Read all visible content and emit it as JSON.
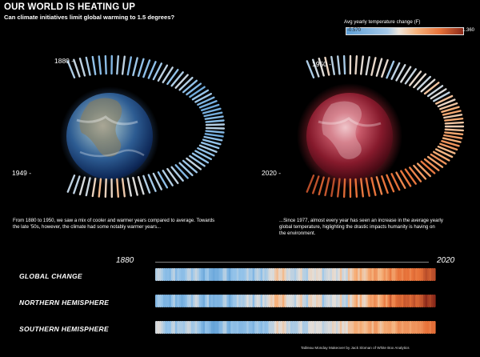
{
  "header": {
    "title": "OUR WORLD IS HEATING UP",
    "subtitle": "Can climate initiatives limit global warming to 1.5 degrees?"
  },
  "legend": {
    "title": "Avg yearly temperature change (F)",
    "min": "-0.570",
    "max": "1.360"
  },
  "left_panel": {
    "year_start": "1880 -",
    "year_end": "1949 -",
    "caption_line1": "From 1880 to 1950, we saw a mix of cooler and warmer years compared to average. Towards",
    "caption_line2": "the late '50s, however, the climate had some notably warmer years..."
  },
  "right_panel": {
    "year_start": "1950 -",
    "year_end": "2020 -",
    "caption_line1": "...Since 1977, almost every year has seen an increase in the average yearly",
    "caption_line2": "global temperature, higlighting the drastic impacts humanity is having on",
    "caption_line3": "the environment."
  },
  "strips": {
    "axis_start": "1880",
    "axis_end": "2020",
    "rows": [
      {
        "label": "GLOBAL CHANGE"
      },
      {
        "label": "NORTHERN HEMISPHERE"
      },
      {
        "label": "SOUTHERN HEMISPHERE"
      }
    ]
  },
  "credit": "Tableau Monday Makeover by Jack Sloman of White Box Analytics",
  "colors": {
    "cool": "#5e9fd6",
    "neutral": "#efe6dc",
    "warm": "#e8733a",
    "hot": "#8c2a1a"
  },
  "chart_data": [
    {
      "type": "heatmap",
      "name_hint": "radial-stripes-1880-1949",
      "x_start": 1880,
      "x_end": 1949,
      "values": [
        -0.17,
        -0.09,
        -0.11,
        -0.18,
        -0.28,
        -0.33,
        -0.31,
        -0.36,
        -0.18,
        -0.11,
        -0.35,
        -0.22,
        -0.27,
        -0.31,
        -0.3,
        -0.22,
        -0.11,
        -0.11,
        -0.27,
        -0.17,
        -0.08,
        -0.15,
        -0.28,
        -0.37,
        -0.47,
        -0.26,
        -0.22,
        -0.39,
        -0.43,
        -0.48,
        -0.43,
        -0.44,
        -0.36,
        -0.34,
        -0.15,
        -0.14,
        -0.36,
        -0.46,
        -0.3,
        -0.27,
        -0.27,
        -0.19,
        -0.28,
        -0.26,
        -0.27,
        -0.22,
        -0.1,
        -0.22,
        -0.2,
        -0.36,
        -0.16,
        -0.1,
        -0.16,
        -0.29,
        -0.13,
        -0.2,
        -0.15,
        -0.03,
        0.0,
        -0.02,
        0.13,
        0.19,
        0.07,
        0.09,
        0.2,
        0.09,
        -0.07,
        -0.03,
        -0.11,
        -0.11
      ],
      "color_range": [
        -0.57,
        1.36
      ]
    },
    {
      "type": "heatmap",
      "name_hint": "radial-stripes-1950-2020",
      "x_start": 1950,
      "x_end": 2020,
      "values": [
        -0.17,
        -0.07,
        0.01,
        0.08,
        -0.13,
        -0.14,
        -0.19,
        0.05,
        0.06,
        0.03,
        -0.03,
        0.06,
        0.03,
        0.05,
        -0.2,
        -0.11,
        -0.06,
        -0.02,
        -0.08,
        0.05,
        0.03,
        -0.08,
        0.01,
        0.16,
        -0.07,
        -0.01,
        -0.1,
        0.18,
        0.07,
        0.16,
        0.26,
        0.32,
        0.14,
        0.31,
        0.16,
        0.12,
        0.18,
        0.32,
        0.39,
        0.27,
        0.45,
        0.41,
        0.22,
        0.23,
        0.31,
        0.45,
        0.33,
        0.46,
        0.61,
        0.38,
        0.39,
        0.54,
        0.63,
        0.62,
        0.53,
        0.68,
        0.64,
        0.66,
        0.54,
        0.65,
        0.72,
        0.61,
        0.65,
        0.68,
        0.74,
        0.9,
        1.01,
        0.92,
        0.85,
        0.98,
        1.02
      ],
      "color_range": [
        -0.57,
        1.36
      ]
    },
    {
      "type": "heatmap",
      "name_hint": "global-change-strip",
      "x_start": 1880,
      "x_end": 2020,
      "values": [
        -0.17,
        -0.09,
        -0.11,
        -0.18,
        -0.28,
        -0.33,
        -0.31,
        -0.36,
        -0.18,
        -0.11,
        -0.35,
        -0.22,
        -0.27,
        -0.31,
        -0.3,
        -0.22,
        -0.11,
        -0.11,
        -0.27,
        -0.17,
        -0.08,
        -0.15,
        -0.28,
        -0.37,
        -0.47,
        -0.26,
        -0.22,
        -0.39,
        -0.43,
        -0.48,
        -0.43,
        -0.44,
        -0.36,
        -0.34,
        -0.15,
        -0.14,
        -0.36,
        -0.46,
        -0.3,
        -0.27,
        -0.27,
        -0.19,
        -0.28,
        -0.26,
        -0.27,
        -0.22,
        -0.1,
        -0.22,
        -0.2,
        -0.36,
        -0.16,
        -0.1,
        -0.16,
        -0.29,
        -0.13,
        -0.2,
        -0.15,
        -0.03,
        0.0,
        -0.02,
        0.13,
        0.19,
        0.07,
        0.09,
        0.2,
        0.09,
        -0.07,
        -0.03,
        -0.11,
        -0.11,
        -0.17,
        -0.07,
        0.01,
        0.08,
        -0.13,
        -0.14,
        -0.19,
        0.05,
        0.06,
        0.03,
        -0.03,
        0.06,
        0.03,
        0.05,
        -0.2,
        -0.11,
        -0.06,
        -0.02,
        -0.08,
        0.05,
        0.03,
        -0.08,
        0.01,
        0.16,
        -0.07,
        -0.01,
        -0.1,
        0.18,
        0.07,
        0.16,
        0.26,
        0.32,
        0.14,
        0.31,
        0.16,
        0.12,
        0.18,
        0.32,
        0.39,
        0.27,
        0.45,
        0.41,
        0.22,
        0.23,
        0.31,
        0.45,
        0.33,
        0.46,
        0.61,
        0.38,
        0.39,
        0.54,
        0.63,
        0.62,
        0.53,
        0.68,
        0.64,
        0.66,
        0.54,
        0.65,
        0.72,
        0.61,
        0.65,
        0.68,
        0.74,
        0.9,
        1.01,
        0.92,
        0.85,
        0.98,
        1.02
      ],
      "color_range": [
        -0.57,
        1.36
      ]
    },
    {
      "type": "heatmap",
      "name_hint": "northern-hemisphere-strip",
      "x_start": 1880,
      "x_end": 2020,
      "values": [
        -0.36,
        -0.21,
        -0.22,
        -0.28,
        -0.4,
        -0.39,
        -0.38,
        -0.47,
        -0.25,
        -0.15,
        -0.41,
        -0.3,
        -0.38,
        -0.46,
        -0.4,
        -0.33,
        -0.18,
        -0.15,
        -0.32,
        -0.15,
        -0.05,
        -0.1,
        -0.3,
        -0.36,
        -0.46,
        -0.25,
        -0.14,
        -0.43,
        -0.35,
        -0.42,
        -0.37,
        -0.39,
        -0.37,
        -0.34,
        -0.15,
        -0.13,
        -0.32,
        -0.47,
        -0.34,
        -0.24,
        -0.23,
        -0.1,
        -0.2,
        -0.16,
        -0.2,
        -0.13,
        0.0,
        -0.12,
        -0.07,
        -0.32,
        -0.09,
        -0.01,
        -0.05,
        -0.24,
        -0.03,
        -0.11,
        -0.04,
        0.06,
        0.13,
        0.08,
        0.25,
        0.26,
        0.15,
        0.14,
        0.28,
        0.12,
        -0.02,
        0.0,
        -0.02,
        -0.05,
        -0.16,
        0.02,
        0.07,
        0.16,
        -0.08,
        -0.1,
        -0.21,
        0.09,
        0.11,
        0.03,
        -0.01,
        0.11,
        0.07,
        0.1,
        -0.27,
        -0.14,
        -0.07,
        -0.03,
        -0.11,
        0.01,
        0.02,
        -0.08,
        -0.03,
        0.15,
        -0.14,
        -0.09,
        -0.2,
        0.18,
        -0.02,
        0.14,
        0.23,
        0.36,
        0.07,
        0.31,
        0.09,
        0.06,
        0.14,
        0.31,
        0.4,
        0.35,
        0.5,
        0.42,
        0.2,
        0.31,
        0.41,
        0.58,
        0.36,
        0.58,
        0.86,
        0.52,
        0.55,
        0.73,
        0.78,
        0.8,
        0.71,
        0.92,
        0.85,
        0.88,
        0.74,
        0.86,
        0.99,
        0.79,
        0.82,
        0.9,
        0.97,
        1.21,
        1.38,
        1.19,
        1.12,
        1.26,
        1.36
      ],
      "color_range": [
        -0.57,
        1.36
      ]
    },
    {
      "type": "heatmap",
      "name_hint": "southern-hemisphere-strip",
      "x_start": 1880,
      "x_end": 2020,
      "values": [
        -0.05,
        0.0,
        -0.02,
        -0.1,
        -0.18,
        -0.28,
        -0.25,
        -0.27,
        -0.12,
        -0.08,
        -0.31,
        -0.16,
        -0.18,
        -0.18,
        -0.22,
        -0.13,
        -0.06,
        -0.08,
        -0.22,
        -0.2,
        -0.12,
        -0.2,
        -0.26,
        -0.38,
        -0.48,
        -0.27,
        -0.3,
        -0.36,
        -0.5,
        -0.53,
        -0.49,
        -0.49,
        -0.35,
        -0.33,
        -0.15,
        -0.15,
        -0.4,
        -0.45,
        -0.26,
        -0.3,
        -0.31,
        -0.27,
        -0.35,
        -0.35,
        -0.33,
        -0.31,
        -0.2,
        -0.31,
        -0.32,
        -0.4,
        -0.23,
        -0.19,
        -0.26,
        -0.34,
        -0.23,
        -0.29,
        -0.26,
        -0.12,
        -0.12,
        -0.11,
        0.01,
        0.12,
        -0.01,
        0.04,
        0.12,
        0.06,
        -0.11,
        -0.06,
        -0.19,
        -0.17,
        -0.18,
        -0.16,
        -0.05,
        0.0,
        -0.18,
        -0.17,
        -0.17,
        0.01,
        0.01,
        0.03,
        -0.05,
        0.01,
        0.0,
        0.0,
        -0.13,
        -0.08,
        -0.05,
        -0.01,
        -0.05,
        0.09,
        0.05,
        -0.08,
        0.05,
        0.17,
        0.0,
        0.07,
        0.01,
        0.18,
        0.16,
        0.18,
        0.29,
        0.28,
        0.21,
        0.31,
        0.23,
        0.18,
        0.22,
        0.33,
        0.38,
        0.19,
        0.4,
        0.4,
        0.24,
        0.15,
        0.21,
        0.32,
        0.3,
        0.34,
        0.36,
        0.24,
        0.23,
        0.35,
        0.48,
        0.44,
        0.35,
        0.44,
        0.43,
        0.44,
        0.34,
        0.44,
        0.45,
        0.43,
        0.48,
        0.46,
        0.51,
        0.59,
        0.64,
        0.65,
        0.58,
        0.7,
        0.68
      ],
      "color_range": [
        -0.57,
        1.36
      ]
    }
  ]
}
